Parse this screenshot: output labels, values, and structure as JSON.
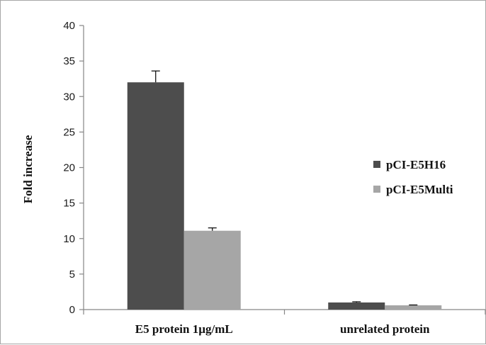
{
  "chart_data": {
    "type": "bar",
    "title": "",
    "xlabel": "",
    "ylabel": "Fold increase",
    "ylim": [
      0,
      40
    ],
    "yticks": [
      0,
      5,
      10,
      15,
      20,
      25,
      30,
      35,
      40
    ],
    "categories": [
      "E5 protein 1µg/mL",
      "unrelated protein"
    ],
    "series": [
      {
        "name": "pCI-E5H16",
        "color": "#4d4d4d",
        "values": [
          32,
          1.0
        ],
        "errors": [
          1.6,
          0.1
        ]
      },
      {
        "name": "pCI-E5Multi",
        "color": "#a6a6a6",
        "values": [
          11.1,
          0.6
        ],
        "errors": [
          0.4,
          0.05
        ]
      }
    ],
    "grid": false,
    "legend": "right"
  }
}
